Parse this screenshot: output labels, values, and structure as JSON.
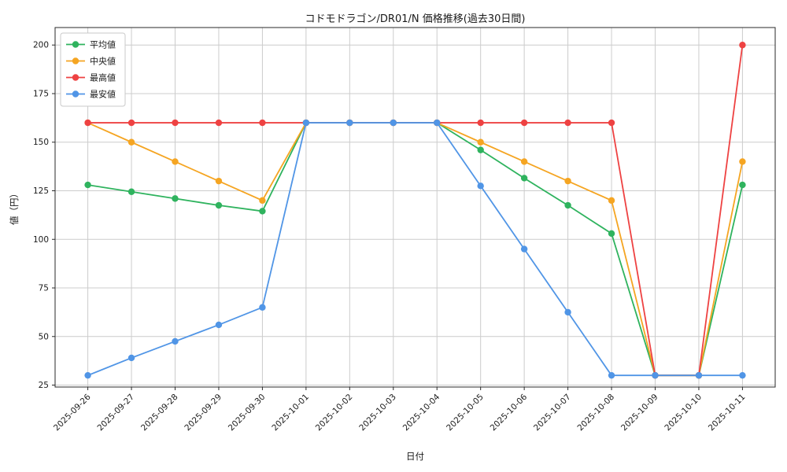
{
  "chart_data": {
    "type": "line",
    "title": "コドモドラゴン/DR01/N 価格推移(過去30日間)",
    "xlabel": "日付",
    "ylabel": "値（円）",
    "x": [
      "2025-09-26",
      "2025-09-27",
      "2025-09-28",
      "2025-09-29",
      "2025-09-30",
      "2025-10-01",
      "2025-10-02",
      "2025-10-03",
      "2025-10-04",
      "2025-10-05",
      "2025-10-06",
      "2025-10-07",
      "2025-10-08",
      "2025-10-09",
      "2025-10-10",
      "2025-10-11"
    ],
    "yticks": [
      25,
      50,
      75,
      100,
      125,
      150,
      175,
      200
    ],
    "ylim": [
      24,
      209
    ],
    "grid": true,
    "legend_position": "upper-left",
    "plot_border_color": "#2a2a2a",
    "grid_color": "#cccccc",
    "series": [
      {
        "key": "average",
        "name": "平均値",
        "color": "#2fb35e",
        "values": [
          128,
          124.5,
          121,
          117.5,
          114.5,
          160,
          160,
          160,
          160,
          146,
          131.5,
          117.5,
          103,
          30,
          30,
          128
        ]
      },
      {
        "key": "median",
        "name": "中央値",
        "color": "#f5a522",
        "values": [
          160,
          150,
          140,
          130,
          120,
          160,
          160,
          160,
          160,
          150,
          140,
          130,
          120,
          30,
          30,
          140
        ]
      },
      {
        "key": "maximum",
        "name": "最高値",
        "color": "#ee4242",
        "values": [
          160,
          160,
          160,
          160,
          160,
          160,
          160,
          160,
          160,
          160,
          160,
          160,
          160,
          30,
          30,
          200
        ]
      },
      {
        "key": "minimum",
        "name": "最安値",
        "color": "#5095e6",
        "values": [
          30,
          39,
          47.5,
          56,
          65,
          160,
          160,
          160,
          160,
          127.5,
          95,
          62.5,
          30,
          30,
          30,
          30
        ]
      }
    ]
  }
}
